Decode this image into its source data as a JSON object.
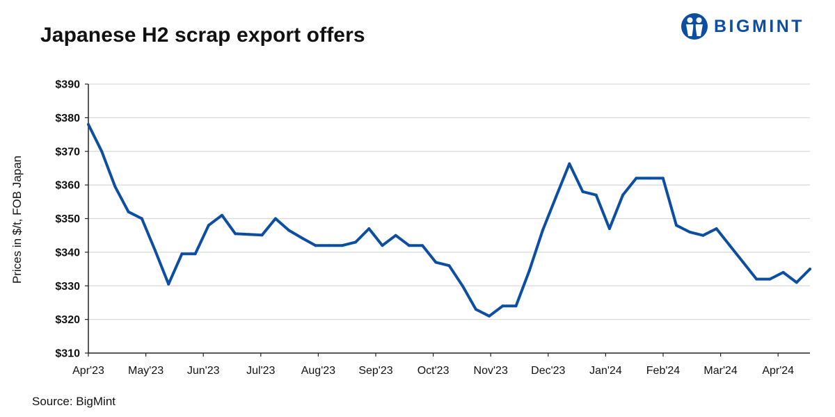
{
  "title": "Japanese H2 scrap export offers",
  "brand": {
    "name": "BIGMINT",
    "color": "#0b4ea2",
    "icon": "bigmint-logo-icon"
  },
  "source": "Source: BigMint",
  "chart_data": {
    "type": "line",
    "title": "Japanese H2 scrap export offers",
    "xlabel": "",
    "ylabel": "Prices in $/t, FOB Japan",
    "ylim": [
      310,
      390
    ],
    "yticks": [
      310,
      320,
      330,
      340,
      350,
      360,
      370,
      380,
      390
    ],
    "ytick_labels": [
      "$310",
      "$320",
      "$330",
      "$340",
      "$350",
      "$360",
      "$370",
      "$380",
      "$390"
    ],
    "xtick_labels": [
      "Apr'23",
      "May'23",
      "Jun'23",
      "Jul'23",
      "Aug'23",
      "Sep'23",
      "Oct'23",
      "Nov'23",
      "Dec'23",
      "Jan'24",
      "Feb'24",
      "Mar'24",
      "Apr'24"
    ],
    "grid": "horizontal",
    "line_color": "#0b4ea2",
    "series": [
      {
        "values": [
          378,
          370,
          359.5,
          352,
          350,
          340.5,
          330.5,
          339.5,
          339.5,
          348,
          351,
          345.5,
          345.3,
          345.1,
          350,
          346.5,
          344.2,
          342,
          342,
          342,
          343,
          347,
          342,
          345,
          342,
          342,
          337,
          336,
          330,
          323,
          321,
          324,
          324,
          334.5,
          346.5,
          356.5,
          366.3,
          358,
          357,
          347,
          357,
          362,
          362,
          362,
          348,
          346,
          345,
          347,
          342,
          337,
          332,
          332,
          334,
          331,
          335
        ]
      }
    ]
  }
}
